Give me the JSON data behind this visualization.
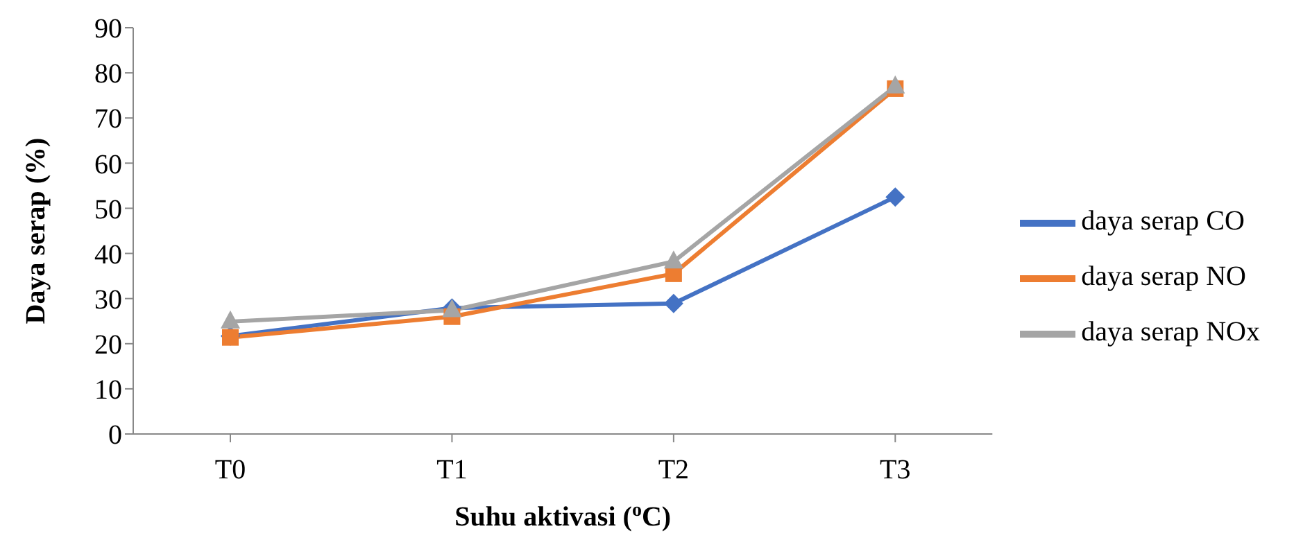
{
  "chart_data": {
    "type": "line",
    "xlabel": "Suhu aktivasi ($^{o}$C)",
    "ylabel": "Daya serap (%)",
    "categories": [
      "T0",
      "T1",
      "T2",
      "T3"
    ],
    "series": [
      {
        "name": "daya serap CO",
        "color": "#4472c4",
        "marker": "diamond",
        "values": [
          21.7,
          27.9,
          28.9,
          52.5
        ]
      },
      {
        "name": "daya serap NO",
        "color": "#ed7d31",
        "marker": "square",
        "values": [
          21.4,
          26.0,
          35.5,
          76.5
        ]
      },
      {
        "name": "daya serap NOx",
        "color": "#a5a5a5",
        "marker": "triangle",
        "values": [
          24.9,
          27.4,
          38.2,
          77.0
        ]
      }
    ],
    "ylim": [
      0,
      90
    ],
    "yticks": [
      0,
      10,
      20,
      30,
      40,
      50,
      60,
      70,
      80,
      90
    ],
    "grid": false,
    "legend": "right"
  }
}
